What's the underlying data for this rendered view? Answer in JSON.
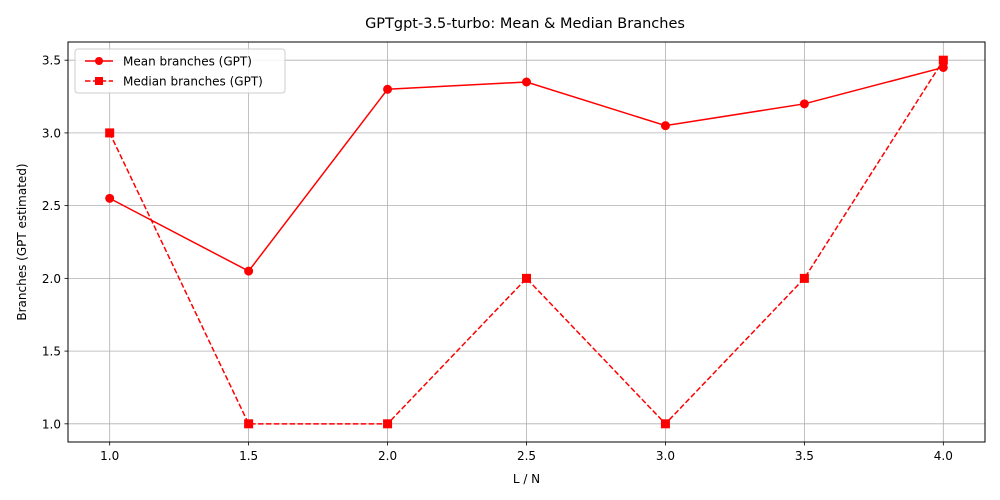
{
  "chart_data": {
    "type": "line",
    "title": "GPTgpt-3.5-turbo: Mean & Median Branches",
    "xlabel": "L / N",
    "ylabel": "Branches (GPT estimated)",
    "x": [
      1.0,
      1.5,
      2.0,
      2.5,
      3.0,
      3.5,
      4.0
    ],
    "xlim": [
      0.85,
      4.15
    ],
    "ylim": [
      0.875,
      3.625
    ],
    "xticks": [
      "1.0",
      "1.5",
      "2.0",
      "2.5",
      "3.0",
      "3.5",
      "4.0"
    ],
    "yticks": [
      "1.0",
      "1.5",
      "2.0",
      "2.5",
      "3.0",
      "3.5"
    ],
    "grid": true,
    "legend_position": "upper-left",
    "series": [
      {
        "name": "Mean branches (GPT)",
        "values": [
          2.55,
          2.05,
          3.3,
          3.35,
          3.05,
          3.2,
          3.45
        ],
        "color": "#ff0000",
        "line_style": "solid",
        "marker": "circle"
      },
      {
        "name": "Median branches (GPT)",
        "values": [
          3.0,
          1.0,
          1.0,
          2.0,
          1.0,
          2.0,
          3.5
        ],
        "color": "#ff0000",
        "line_style": "dashed",
        "marker": "square"
      }
    ]
  }
}
